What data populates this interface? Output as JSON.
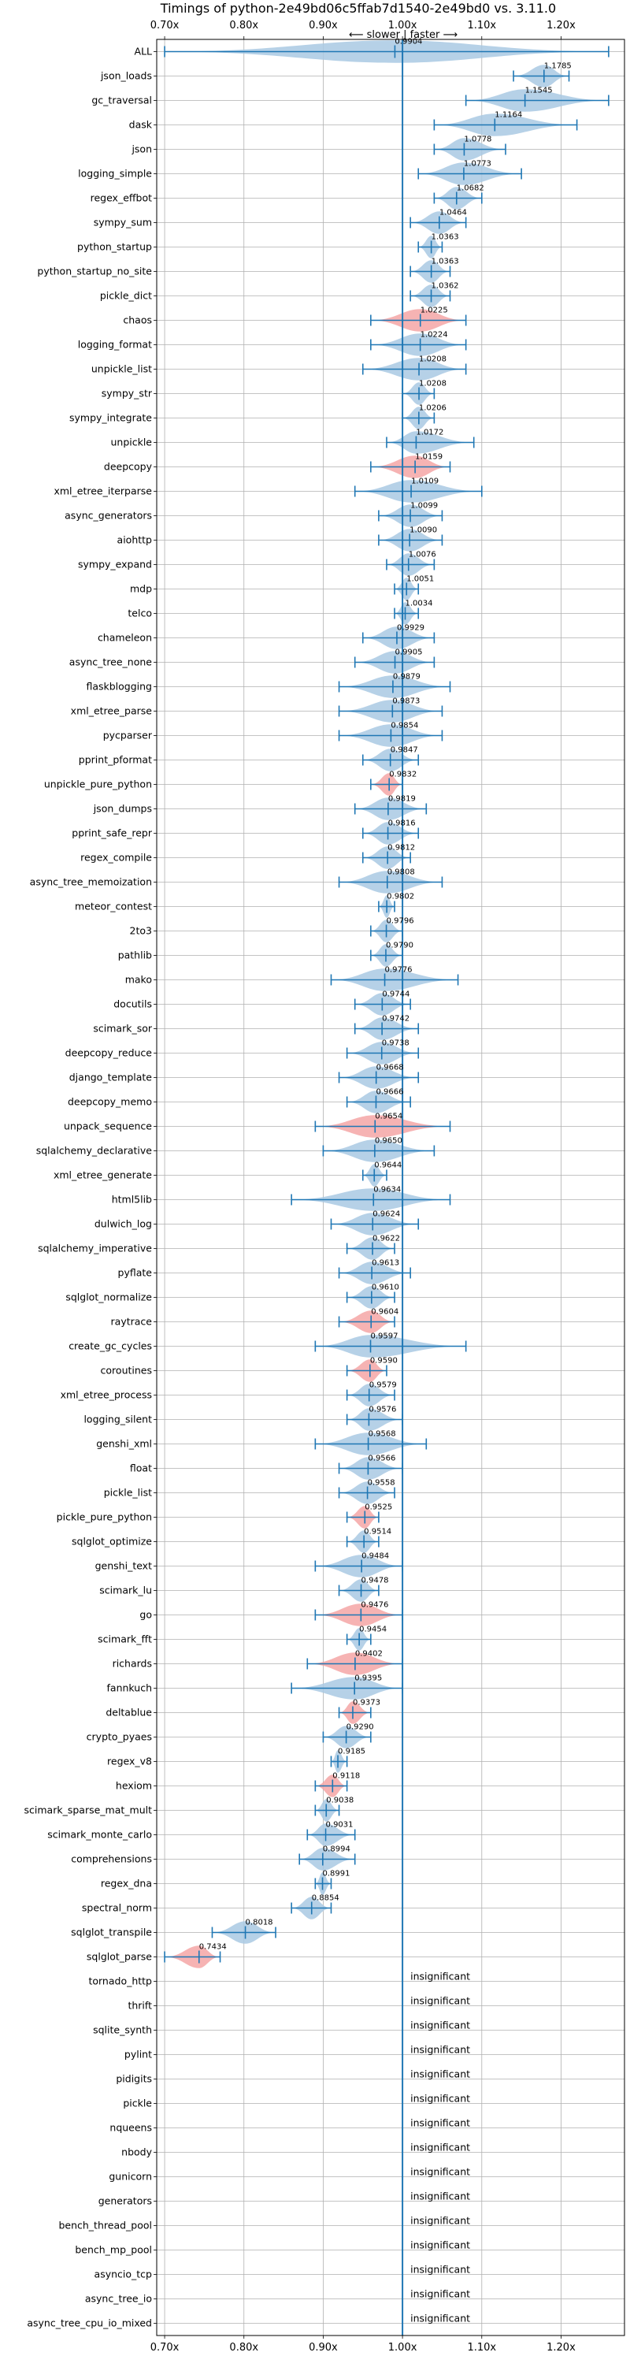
{
  "chart_data": {
    "type": "violin",
    "title": "Timings of python-2e49bd06c5ffab7d1540-2e49bd0 vs. 3.11.0",
    "direction_label": "⟵ slower | faster ⟶",
    "xlim": [
      0.69,
      1.28
    ],
    "x_ticks": [
      0.7,
      0.8,
      0.9,
      1.0,
      1.1,
      1.2
    ],
    "x_tick_labels": [
      "0.70x",
      "0.80x",
      "0.90x",
      "1.00x",
      "1.10x",
      "1.20x"
    ],
    "reference_line": 1.0,
    "grid": true,
    "insignificant_label": "insignificant",
    "colors": {
      "faster": "#1f77b4",
      "faster_fill": "#a9c9e3",
      "slower_fill": "#f4a6a6",
      "grid": "#b0b0b0"
    },
    "benchmarks": [
      {
        "name": "ALL",
        "value": 0.9904,
        "label": "0.9904",
        "min": 0.7,
        "max": 1.26,
        "slower": false
      },
      {
        "name": "json_loads",
        "value": 1.1785,
        "label": "1.1785",
        "min": 1.14,
        "max": 1.21,
        "slower": false
      },
      {
        "name": "gc_traversal",
        "value": 1.1545,
        "label": "1.1545",
        "min": 1.08,
        "max": 1.26,
        "slower": false
      },
      {
        "name": "dask",
        "value": 1.1164,
        "label": "1.1164",
        "min": 1.04,
        "max": 1.22,
        "slower": false
      },
      {
        "name": "json",
        "value": 1.0778,
        "label": "1.0778",
        "min": 1.04,
        "max": 1.13,
        "slower": false
      },
      {
        "name": "logging_simple",
        "value": 1.0773,
        "label": "1.0773",
        "min": 1.02,
        "max": 1.15,
        "slower": false
      },
      {
        "name": "regex_effbot",
        "value": 1.0682,
        "label": "1.0682",
        "min": 1.04,
        "max": 1.1,
        "slower": false
      },
      {
        "name": "sympy_sum",
        "value": 1.0464,
        "label": "1.0464",
        "min": 1.01,
        "max": 1.08,
        "slower": false
      },
      {
        "name": "python_startup",
        "value": 1.0363,
        "label": "1.0363",
        "min": 1.02,
        "max": 1.05,
        "slower": false
      },
      {
        "name": "python_startup_no_site",
        "value": 1.0363,
        "label": "1.0363",
        "min": 1.01,
        "max": 1.06,
        "slower": false
      },
      {
        "name": "pickle_dict",
        "value": 1.0362,
        "label": "1.0362",
        "min": 1.01,
        "max": 1.06,
        "slower": false
      },
      {
        "name": "chaos",
        "value": 1.0225,
        "label": "1.0225",
        "min": 0.96,
        "max": 1.08,
        "slower": true
      },
      {
        "name": "logging_format",
        "value": 1.0224,
        "label": "1.0224",
        "min": 0.96,
        "max": 1.08,
        "slower": false
      },
      {
        "name": "unpickle_list",
        "value": 1.0208,
        "label": "1.0208",
        "min": 0.95,
        "max": 1.08,
        "slower": false
      },
      {
        "name": "sympy_str",
        "value": 1.0208,
        "label": "1.0208",
        "min": 1.0,
        "max": 1.04,
        "slower": false
      },
      {
        "name": "sympy_integrate",
        "value": 1.0206,
        "label": "1.0206",
        "min": 1.0,
        "max": 1.04,
        "slower": false
      },
      {
        "name": "unpickle",
        "value": 1.0172,
        "label": "1.0172",
        "min": 0.98,
        "max": 1.09,
        "slower": false
      },
      {
        "name": "deepcopy",
        "value": 1.0159,
        "label": "1.0159",
        "min": 0.96,
        "max": 1.06,
        "slower": true
      },
      {
        "name": "xml_etree_iterparse",
        "value": 1.0109,
        "label": "1.0109",
        "min": 0.94,
        "max": 1.1,
        "slower": false
      },
      {
        "name": "async_generators",
        "value": 1.0099,
        "label": "1.0099",
        "min": 0.97,
        "max": 1.05,
        "slower": false
      },
      {
        "name": "aiohttp",
        "value": 1.009,
        "label": "1.0090",
        "min": 0.97,
        "max": 1.05,
        "slower": false
      },
      {
        "name": "sympy_expand",
        "value": 1.0076,
        "label": "1.0076",
        "min": 0.98,
        "max": 1.04,
        "slower": false
      },
      {
        "name": "mdp",
        "value": 1.0051,
        "label": "1.0051",
        "min": 0.99,
        "max": 1.02,
        "slower": false
      },
      {
        "name": "telco",
        "value": 1.0034,
        "label": "1.0034",
        "min": 0.99,
        "max": 1.02,
        "slower": false
      },
      {
        "name": "chameleon",
        "value": 0.9929,
        "label": "0.9929",
        "min": 0.95,
        "max": 1.04,
        "slower": false
      },
      {
        "name": "async_tree_none",
        "value": 0.9905,
        "label": "0.9905",
        "min": 0.94,
        "max": 1.04,
        "slower": false
      },
      {
        "name": "flaskblogging",
        "value": 0.9879,
        "label": "0.9879",
        "min": 0.92,
        "max": 1.06,
        "slower": false
      },
      {
        "name": "xml_etree_parse",
        "value": 0.9873,
        "label": "0.9873",
        "min": 0.92,
        "max": 1.05,
        "slower": false
      },
      {
        "name": "pycparser",
        "value": 0.9854,
        "label": "0.9854",
        "min": 0.92,
        "max": 1.05,
        "slower": false
      },
      {
        "name": "pprint_pformat",
        "value": 0.9847,
        "label": "0.9847",
        "min": 0.95,
        "max": 1.02,
        "slower": false
      },
      {
        "name": "unpickle_pure_python",
        "value": 0.9832,
        "label": "0.9832",
        "min": 0.96,
        "max": 1.0,
        "slower": true
      },
      {
        "name": "json_dumps",
        "value": 0.9819,
        "label": "0.9819",
        "min": 0.94,
        "max": 1.03,
        "slower": false
      },
      {
        "name": "pprint_safe_repr",
        "value": 0.9816,
        "label": "0.9816",
        "min": 0.95,
        "max": 1.02,
        "slower": false
      },
      {
        "name": "regex_compile",
        "value": 0.9812,
        "label": "0.9812",
        "min": 0.95,
        "max": 1.01,
        "slower": false
      },
      {
        "name": "async_tree_memoization",
        "value": 0.9808,
        "label": "0.9808",
        "min": 0.92,
        "max": 1.05,
        "slower": false
      },
      {
        "name": "meteor_contest",
        "value": 0.9802,
        "label": "0.9802",
        "min": 0.97,
        "max": 0.99,
        "slower": false
      },
      {
        "name": "2to3",
        "value": 0.9796,
        "label": "0.9796",
        "min": 0.96,
        "max": 1.0,
        "slower": false
      },
      {
        "name": "pathlib",
        "value": 0.979,
        "label": "0.9790",
        "min": 0.96,
        "max": 1.0,
        "slower": false
      },
      {
        "name": "mako",
        "value": 0.9776,
        "label": "0.9776",
        "min": 0.91,
        "max": 1.07,
        "slower": false
      },
      {
        "name": "docutils",
        "value": 0.9744,
        "label": "0.9744",
        "min": 0.94,
        "max": 1.01,
        "slower": false
      },
      {
        "name": "scimark_sor",
        "value": 0.9742,
        "label": "0.9742",
        "min": 0.94,
        "max": 1.02,
        "slower": false
      },
      {
        "name": "deepcopy_reduce",
        "value": 0.9738,
        "label": "0.9738",
        "min": 0.93,
        "max": 1.02,
        "slower": false
      },
      {
        "name": "django_template",
        "value": 0.9668,
        "label": "0.9668",
        "min": 0.92,
        "max": 1.02,
        "slower": false
      },
      {
        "name": "deepcopy_memo",
        "value": 0.9666,
        "label": "0.9666",
        "min": 0.93,
        "max": 1.01,
        "slower": false
      },
      {
        "name": "unpack_sequence",
        "value": 0.9654,
        "label": "0.9654",
        "min": 0.89,
        "max": 1.06,
        "slower": true
      },
      {
        "name": "sqlalchemy_declarative",
        "value": 0.965,
        "label": "0.9650",
        "min": 0.9,
        "max": 1.04,
        "slower": false
      },
      {
        "name": "xml_etree_generate",
        "value": 0.9644,
        "label": "0.9644",
        "min": 0.95,
        "max": 0.98,
        "slower": false
      },
      {
        "name": "html5lib",
        "value": 0.9634,
        "label": "0.9634",
        "min": 0.86,
        "max": 1.06,
        "slower": false
      },
      {
        "name": "dulwich_log",
        "value": 0.9624,
        "label": "0.9624",
        "min": 0.91,
        "max": 1.02,
        "slower": false
      },
      {
        "name": "sqlalchemy_imperative",
        "value": 0.9622,
        "label": "0.9622",
        "min": 0.93,
        "max": 0.99,
        "slower": false
      },
      {
        "name": "pyflate",
        "value": 0.9613,
        "label": "0.9613",
        "min": 0.92,
        "max": 1.01,
        "slower": false
      },
      {
        "name": "sqlglot_normalize",
        "value": 0.961,
        "label": "0.9610",
        "min": 0.93,
        "max": 0.99,
        "slower": false
      },
      {
        "name": "raytrace",
        "value": 0.9604,
        "label": "0.9604",
        "min": 0.92,
        "max": 0.99,
        "slower": true
      },
      {
        "name": "create_gc_cycles",
        "value": 0.9597,
        "label": "0.9597",
        "min": 0.89,
        "max": 1.08,
        "slower": false
      },
      {
        "name": "coroutines",
        "value": 0.959,
        "label": "0.9590",
        "min": 0.93,
        "max": 0.98,
        "slower": true
      },
      {
        "name": "xml_etree_process",
        "value": 0.9579,
        "label": "0.9579",
        "min": 0.93,
        "max": 0.99,
        "slower": false
      },
      {
        "name": "logging_silent",
        "value": 0.9576,
        "label": "0.9576",
        "min": 0.93,
        "max": 1.0,
        "slower": false
      },
      {
        "name": "genshi_xml",
        "value": 0.9568,
        "label": "0.9568",
        "min": 0.89,
        "max": 1.03,
        "slower": false
      },
      {
        "name": "float",
        "value": 0.9566,
        "label": "0.9566",
        "min": 0.92,
        "max": 1.0,
        "slower": false
      },
      {
        "name": "pickle_list",
        "value": 0.9558,
        "label": "0.9558",
        "min": 0.92,
        "max": 0.99,
        "slower": false
      },
      {
        "name": "pickle_pure_python",
        "value": 0.9525,
        "label": "0.9525",
        "min": 0.93,
        "max": 0.97,
        "slower": true
      },
      {
        "name": "sqlglot_optimize",
        "value": 0.9514,
        "label": "0.9514",
        "min": 0.93,
        "max": 0.97,
        "slower": false
      },
      {
        "name": "genshi_text",
        "value": 0.9484,
        "label": "0.9484",
        "min": 0.89,
        "max": 1.0,
        "slower": false
      },
      {
        "name": "scimark_lu",
        "value": 0.9478,
        "label": "0.9478",
        "min": 0.92,
        "max": 0.97,
        "slower": false
      },
      {
        "name": "go",
        "value": 0.9476,
        "label": "0.9476",
        "min": 0.89,
        "max": 1.0,
        "slower": true
      },
      {
        "name": "scimark_fft",
        "value": 0.9454,
        "label": "0.9454",
        "min": 0.93,
        "max": 0.96,
        "slower": false
      },
      {
        "name": "richards",
        "value": 0.9402,
        "label": "0.9402",
        "min": 0.88,
        "max": 1.0,
        "slower": true
      },
      {
        "name": "fannkuch",
        "value": 0.9395,
        "label": "0.9395",
        "min": 0.86,
        "max": 1.0,
        "slower": false
      },
      {
        "name": "deltablue",
        "value": 0.9373,
        "label": "0.9373",
        "min": 0.92,
        "max": 0.96,
        "slower": true
      },
      {
        "name": "crypto_pyaes",
        "value": 0.929,
        "label": "0.9290",
        "min": 0.9,
        "max": 0.96,
        "slower": false
      },
      {
        "name": "regex_v8",
        "value": 0.9185,
        "label": "0.9185",
        "min": 0.91,
        "max": 0.93,
        "slower": false
      },
      {
        "name": "hexiom",
        "value": 0.9118,
        "label": "0.9118",
        "min": 0.89,
        "max": 0.93,
        "slower": true
      },
      {
        "name": "scimark_sparse_mat_mult",
        "value": 0.9038,
        "label": "0.9038",
        "min": 0.89,
        "max": 0.92,
        "slower": false
      },
      {
        "name": "scimark_monte_carlo",
        "value": 0.9031,
        "label": "0.9031",
        "min": 0.88,
        "max": 0.94,
        "slower": false
      },
      {
        "name": "comprehensions",
        "value": 0.8994,
        "label": "0.8994",
        "min": 0.87,
        "max": 0.94,
        "slower": false
      },
      {
        "name": "regex_dna",
        "value": 0.8991,
        "label": "0.8991",
        "min": 0.89,
        "max": 0.91,
        "slower": false
      },
      {
        "name": "spectral_norm",
        "value": 0.8854,
        "label": "0.8854",
        "min": 0.86,
        "max": 0.91,
        "slower": false
      },
      {
        "name": "sqlglot_transpile",
        "value": 0.8018,
        "label": "0.8018",
        "min": 0.76,
        "max": 0.84,
        "slower": false
      },
      {
        "name": "sqlglot_parse",
        "value": 0.7434,
        "label": "0.7434",
        "min": 0.7,
        "max": 0.77,
        "slower": true
      },
      {
        "name": "tornado_http",
        "insignificant": true
      },
      {
        "name": "thrift",
        "insignificant": true
      },
      {
        "name": "sqlite_synth",
        "insignificant": true
      },
      {
        "name": "pylint",
        "insignificant": true
      },
      {
        "name": "pidigits",
        "insignificant": true
      },
      {
        "name": "pickle",
        "insignificant": true
      },
      {
        "name": "nqueens",
        "insignificant": true
      },
      {
        "name": "nbody",
        "insignificant": true
      },
      {
        "name": "gunicorn",
        "insignificant": true
      },
      {
        "name": "generators",
        "insignificant": true
      },
      {
        "name": "bench_thread_pool",
        "insignificant": true
      },
      {
        "name": "bench_mp_pool",
        "insignificant": true
      },
      {
        "name": "asyncio_tcp",
        "insignificant": true
      },
      {
        "name": "async_tree_io",
        "insignificant": true
      },
      {
        "name": "async_tree_cpu_io_mixed",
        "insignificant": true
      }
    ]
  }
}
